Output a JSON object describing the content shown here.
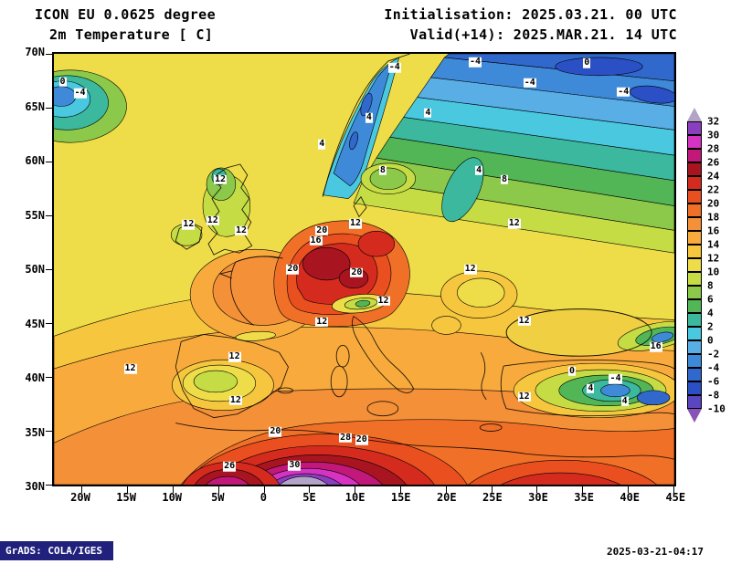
{
  "header": {
    "title_line1": "ICON EU 0.0625 degree",
    "title_line2": "2m Temperature [ C]",
    "init_line": "Initialisation: 2025.03.21. 00 UTC",
    "valid_line": "Valid(+14): 2025.MAR.21. 14 UTC"
  },
  "chart_data": {
    "type": "filled_contour_map",
    "title": "ICON EU 0.0625 degree 2m Temperature [ C]",
    "unit": "C",
    "lat_ticks": [
      "70N",
      "65N",
      "60N",
      "55N",
      "50N",
      "45N",
      "40N",
      "35N",
      "30N"
    ],
    "lon_ticks": [
      "20W",
      "15W",
      "10W",
      "5W",
      "0",
      "5E",
      "10E",
      "15E",
      "20E",
      "25E",
      "30E",
      "35E",
      "40E",
      "45E"
    ],
    "colorbar_ticks": [
      "32",
      "30",
      "28",
      "26",
      "24",
      "22",
      "20",
      "18",
      "16",
      "14",
      "12",
      "10",
      "8",
      "6",
      "4",
      "2",
      "0",
      "-2",
      "-4",
      "-6",
      "-8",
      "-10"
    ],
    "colorbar_range": [
      -10,
      32
    ],
    "colorbar_colors_top_to_bottom": [
      "#b3a3c8",
      "#8a3fbf",
      "#d633c2",
      "#c2187a",
      "#a81420",
      "#d42b1e",
      "#ea4f1f",
      "#f07028",
      "#f49038",
      "#f8ab3c",
      "#f5c63e",
      "#eedd48",
      "#c6dc44",
      "#8cc94a",
      "#52b656",
      "#3cb89e",
      "#49c8e0",
      "#59aee6",
      "#3f8ad8",
      "#3168cc",
      "#2b4fc4",
      "#5a46c0",
      "#8952b8"
    ],
    "contour_labels": [
      {
        "v": "0",
        "x": 1.4,
        "y": 6.5
      },
      {
        "v": "-4",
        "x": 4.2,
        "y": 9.2
      },
      {
        "v": "-4",
        "x": 54.9,
        "y": 3.2
      },
      {
        "v": "-4",
        "x": 67.9,
        "y": 2.0
      },
      {
        "v": "0",
        "x": 85.9,
        "y": 2.2
      },
      {
        "v": "-4",
        "x": 76.7,
        "y": 6.7
      },
      {
        "v": "-4",
        "x": 91.8,
        "y": 8.8
      },
      {
        "v": "4",
        "x": 60.3,
        "y": 13.7
      },
      {
        "v": "4",
        "x": 50.8,
        "y": 14.9
      },
      {
        "v": "4",
        "x": 43.2,
        "y": 21.0
      },
      {
        "v": "4",
        "x": 68.5,
        "y": 27.1
      },
      {
        "v": "8",
        "x": 53.0,
        "y": 27.1
      },
      {
        "v": "8",
        "x": 72.6,
        "y": 29.2
      },
      {
        "v": "12",
        "x": 26.8,
        "y": 29.2
      },
      {
        "v": "12",
        "x": 21.7,
        "y": 39.7
      },
      {
        "v": "12",
        "x": 25.6,
        "y": 38.7
      },
      {
        "v": "12",
        "x": 30.2,
        "y": 41.0
      },
      {
        "v": "16",
        "x": 42.2,
        "y": 43.4
      },
      {
        "v": "20",
        "x": 43.2,
        "y": 41.0
      },
      {
        "v": "12",
        "x": 48.6,
        "y": 39.5
      },
      {
        "v": "12",
        "x": 74.2,
        "y": 39.5
      },
      {
        "v": "20",
        "x": 38.5,
        "y": 50.0
      },
      {
        "v": "20",
        "x": 48.8,
        "y": 50.8
      },
      {
        "v": "12",
        "x": 67.1,
        "y": 50.0
      },
      {
        "v": "12",
        "x": 53.1,
        "y": 57.4
      },
      {
        "v": "12",
        "x": 43.2,
        "y": 62.2
      },
      {
        "v": "12",
        "x": 75.8,
        "y": 62.0
      },
      {
        "v": "12",
        "x": 12.3,
        "y": 73.1
      },
      {
        "v": "12",
        "x": 29.1,
        "y": 70.4
      },
      {
        "v": "12",
        "x": 29.3,
        "y": 80.5
      },
      {
        "v": "16",
        "x": 97.0,
        "y": 68.1
      },
      {
        "v": "12",
        "x": 75.8,
        "y": 79.6
      },
      {
        "v": "0",
        "x": 83.5,
        "y": 73.7
      },
      {
        "v": "4",
        "x": 86.5,
        "y": 77.7
      },
      {
        "v": "-4",
        "x": 90.5,
        "y": 75.5
      },
      {
        "v": "4",
        "x": 92.0,
        "y": 80.7
      },
      {
        "v": "20",
        "x": 35.7,
        "y": 87.8
      },
      {
        "v": "20",
        "x": 49.6,
        "y": 89.7
      },
      {
        "v": "28",
        "x": 47.0,
        "y": 89.1
      },
      {
        "v": "30",
        "x": 38.8,
        "y": 95.6
      },
      {
        "v": "26",
        "x": 28.3,
        "y": 95.8
      }
    ]
  },
  "footer": {
    "credit": "GrADS: COLA/IGES",
    "timestamp": "2025-03-21-04:17"
  }
}
